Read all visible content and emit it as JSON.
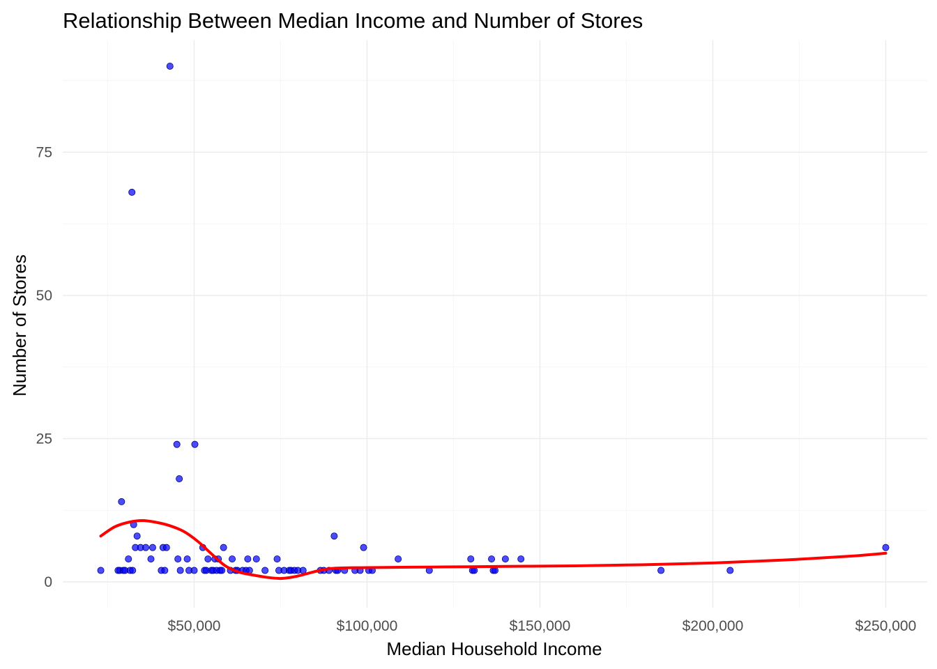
{
  "chart_data": {
    "type": "scatter",
    "title": "Relationship Between Median Income and Number of Stores",
    "xlabel": "Median Household Income",
    "ylabel": "Number of Stores",
    "xlim": [
      12000,
      262000
    ],
    "ylim": [
      -4.5,
      94.5
    ],
    "x_ticks": [
      50000,
      100000,
      150000,
      200000,
      250000
    ],
    "x_tick_labels": [
      "$50,000",
      "$100,000",
      "$150,000",
      "$200,000",
      "$250,000"
    ],
    "y_ticks": [
      0,
      25,
      50,
      75
    ],
    "y_tick_labels": [
      "0",
      "25",
      "50",
      "75"
    ],
    "grid": true,
    "legend": "none",
    "colors": {
      "points": "#0000ff",
      "trend": "#ff0000"
    },
    "series": [
      {
        "kind": "points",
        "x": [
          23000,
          28000,
          28500,
          29000,
          29500,
          30000,
          31000,
          31500,
          32000,
          32200,
          32500,
          33000,
          33500,
          34500,
          36000,
          37500,
          38000,
          40500,
          41000,
          41500,
          42000,
          43000,
          45000,
          45300,
          45700,
          46000,
          48000,
          48500,
          50000,
          50200,
          52500,
          53000,
          53500,
          54000,
          55000,
          55500,
          56000,
          56500,
          57000,
          57500,
          58000,
          58500,
          60500,
          61000,
          62000,
          62500,
          64000,
          65000,
          65500,
          66000,
          68000,
          70500,
          74000,
          74500,
          76000,
          77500,
          78000,
          79000,
          80000,
          81500,
          86500,
          87500,
          89000,
          90500,
          91000,
          91500,
          93500,
          96500,
          98000,
          99000,
          100500,
          101500,
          109000,
          118000,
          130000,
          130500,
          131000,
          136000,
          136500,
          137000,
          140000,
          144500,
          185000,
          205000,
          250000
        ],
        "y": [
          2,
          2,
          2,
          14,
          2,
          2,
          4,
          2,
          68,
          2,
          10,
          6,
          8,
          6,
          6,
          4,
          6,
          2,
          6,
          2,
          6,
          90,
          24,
          4,
          18,
          2,
          4,
          2,
          2,
          24,
          6,
          2,
          2,
          4,
          2,
          2,
          4,
          2,
          4,
          2,
          2,
          6,
          2,
          4,
          2,
          2,
          2,
          2,
          4,
          2,
          4,
          2,
          4,
          2,
          2,
          2,
          2,
          2,
          2,
          2,
          2,
          2,
          2,
          8,
          2,
          2,
          2,
          2,
          2,
          6,
          2,
          2,
          4,
          2,
          4,
          2,
          2,
          4,
          2,
          2,
          4,
          4,
          2,
          2,
          6
        ]
      },
      {
        "kind": "smooth",
        "x": [
          23000,
          27000,
          31000,
          35000,
          39000,
          43000,
          47000,
          51000,
          55000,
          59000,
          63000,
          67000,
          71000,
          75000,
          79000,
          83000,
          87000,
          91000,
          100000,
          120000,
          140000,
          160000,
          180000,
          200000,
          220000,
          240000,
          250000
        ],
        "y": [
          8,
          9.6,
          10.4,
          10.7,
          10.4,
          9.8,
          8.8,
          7.1,
          4.9,
          2.8,
          1.7,
          1.2,
          0.8,
          0.6,
          0.9,
          1.5,
          2.1,
          2.4,
          2.5,
          2.6,
          2.7,
          2.8,
          3.0,
          3.3,
          3.8,
          4.5,
          5.0
        ]
      }
    ]
  }
}
